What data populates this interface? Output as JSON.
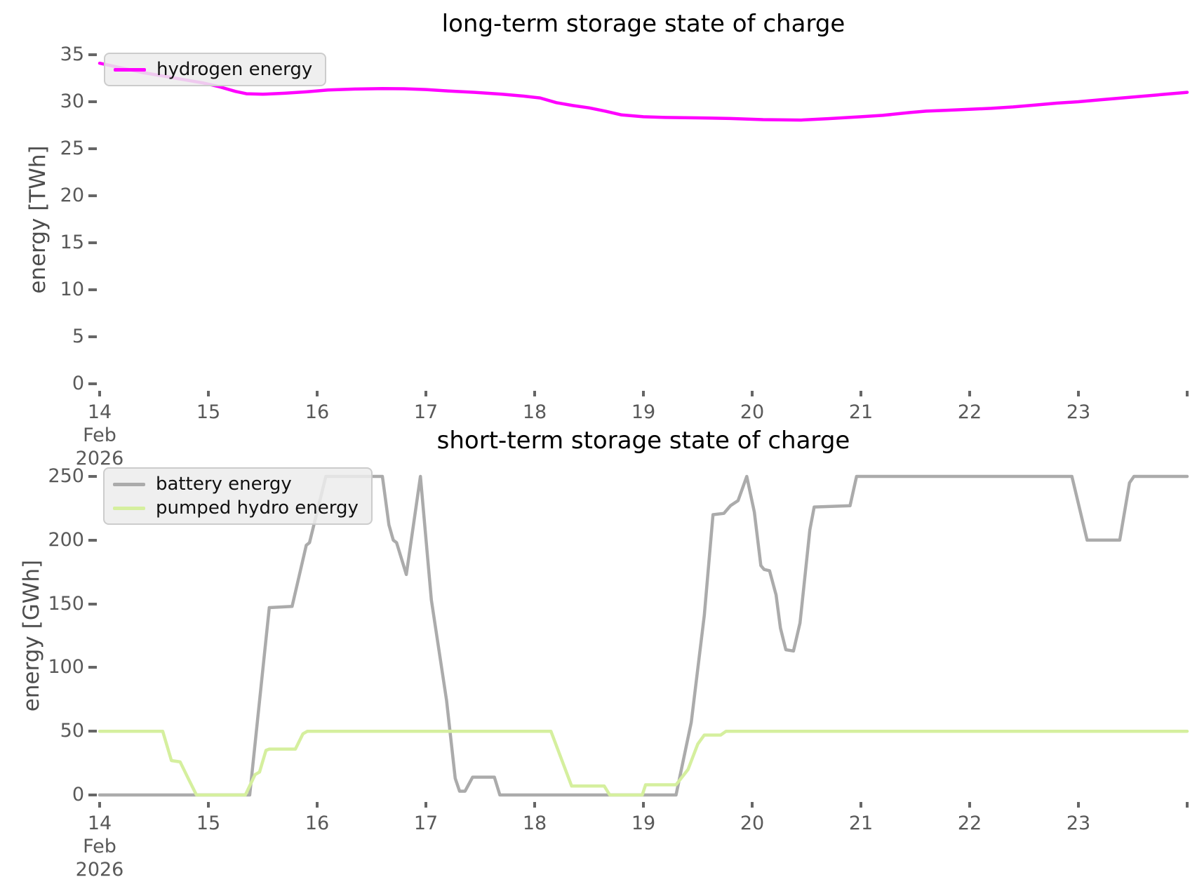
{
  "chart_data": [
    {
      "type": "line",
      "title": "long-term storage state of charge",
      "xlabel": "",
      "ylabel": "energy [TWh]",
      "xlim": [
        14,
        24
      ],
      "ylim": [
        0,
        35
      ],
      "grid": false,
      "legend_position": "upper left",
      "x_axis": {
        "unit": "day of month",
        "month": "Feb",
        "year": "2026"
      },
      "xticks": [
        14,
        15,
        16,
        17,
        18,
        19,
        20,
        21,
        22,
        23
      ],
      "yticks": [
        0,
        5,
        10,
        15,
        20,
        25,
        30,
        35
      ],
      "series": [
        {
          "name": "hydrogen energy",
          "color": "#ff00ff",
          "points": [
            [
              14.0,
              34.1
            ],
            [
              14.2,
              33.6
            ],
            [
              14.4,
              33.1
            ],
            [
              14.6,
              32.7
            ],
            [
              14.8,
              32.3
            ],
            [
              14.95,
              32.0
            ],
            [
              15.1,
              31.6
            ],
            [
              15.25,
              31.1
            ],
            [
              15.35,
              30.85
            ],
            [
              15.5,
              30.8
            ],
            [
              15.7,
              30.9
            ],
            [
              15.9,
              31.05
            ],
            [
              16.1,
              31.25
            ],
            [
              16.35,
              31.35
            ],
            [
              16.6,
              31.4
            ],
            [
              16.8,
              31.38
            ],
            [
              17.0,
              31.3
            ],
            [
              17.2,
              31.15
            ],
            [
              17.45,
              31.0
            ],
            [
              17.7,
              30.8
            ],
            [
              17.9,
              30.6
            ],
            [
              18.05,
              30.4
            ],
            [
              18.2,
              29.9
            ],
            [
              18.35,
              29.6
            ],
            [
              18.5,
              29.35
            ],
            [
              18.65,
              29.0
            ],
            [
              18.8,
              28.6
            ],
            [
              19.0,
              28.4
            ],
            [
              19.2,
              28.33
            ],
            [
              19.5,
              28.28
            ],
            [
              19.8,
              28.22
            ],
            [
              20.1,
              28.1
            ],
            [
              20.45,
              28.05
            ],
            [
              20.7,
              28.2
            ],
            [
              21.0,
              28.4
            ],
            [
              21.2,
              28.55
            ],
            [
              21.45,
              28.85
            ],
            [
              21.6,
              29.0
            ],
            [
              21.8,
              29.1
            ],
            [
              22.0,
              29.2
            ],
            [
              22.2,
              29.3
            ],
            [
              22.4,
              29.45
            ],
            [
              22.6,
              29.65
            ],
            [
              22.8,
              29.85
            ],
            [
              23.0,
              30.0
            ],
            [
              23.2,
              30.2
            ],
            [
              23.4,
              30.4
            ],
            [
              23.6,
              30.6
            ],
            [
              23.8,
              30.8
            ],
            [
              24.0,
              31.0
            ]
          ]
        }
      ]
    },
    {
      "type": "line",
      "title": "short-term storage state of charge",
      "xlabel": "",
      "ylabel": "energy [GWh]",
      "xlim": [
        14,
        24
      ],
      "ylim": [
        0,
        250
      ],
      "grid": false,
      "legend_position": "upper left",
      "x_axis": {
        "unit": "day of month",
        "month": "Feb",
        "year": "2026"
      },
      "xticks": [
        14,
        15,
        16,
        17,
        18,
        19,
        20,
        21,
        22,
        23
      ],
      "yticks": [
        0,
        50,
        100,
        150,
        200,
        250
      ],
      "series": [
        {
          "name": "battery energy",
          "color": "#ababab",
          "points": [
            [
              14.0,
              0
            ],
            [
              15.38,
              0
            ],
            [
              15.56,
              147
            ],
            [
              15.77,
              148
            ],
            [
              15.9,
              196
            ],
            [
              15.93,
              198
            ],
            [
              16.08,
              250
            ],
            [
              16.6,
              250
            ],
            [
              16.66,
              212
            ],
            [
              16.7,
              200
            ],
            [
              16.73,
              198
            ],
            [
              16.82,
              173
            ],
            [
              16.95,
              250
            ],
            [
              17.05,
              153
            ],
            [
              17.19,
              74
            ],
            [
              17.27,
              13
            ],
            [
              17.31,
              3
            ],
            [
              17.36,
              3
            ],
            [
              17.43,
              14
            ],
            [
              17.63,
              14
            ],
            [
              17.68,
              0
            ],
            [
              19.3,
              0
            ],
            [
              19.44,
              57
            ],
            [
              19.56,
              141
            ],
            [
              19.64,
              220
            ],
            [
              19.74,
              221
            ],
            [
              19.8,
              227
            ],
            [
              19.87,
              231
            ],
            [
              19.95,
              250
            ],
            [
              20.02,
              222
            ],
            [
              20.08,
              180
            ],
            [
              20.11,
              177
            ],
            [
              20.16,
              176
            ],
            [
              20.22,
              157
            ],
            [
              20.26,
              131
            ],
            [
              20.31,
              114
            ],
            [
              20.38,
              113
            ],
            [
              20.44,
              135
            ],
            [
              20.49,
              175
            ],
            [
              20.53,
              208
            ],
            [
              20.57,
              226
            ],
            [
              20.9,
              227
            ],
            [
              20.96,
              250
            ],
            [
              22.94,
              250
            ],
            [
              23.08,
              200
            ],
            [
              23.38,
              200
            ],
            [
              23.47,
              245
            ],
            [
              23.51,
              250
            ],
            [
              24.0,
              250
            ]
          ]
        },
        {
          "name": "pumped hydro energy",
          "color": "#d5ef9e",
          "points": [
            [
              14.0,
              50
            ],
            [
              14.58,
              50
            ],
            [
              14.66,
              27
            ],
            [
              14.74,
              26
            ],
            [
              14.82,
              12
            ],
            [
              14.89,
              0
            ],
            [
              15.34,
              0
            ],
            [
              15.43,
              16
            ],
            [
              15.47,
              18
            ],
            [
              15.53,
              35
            ],
            [
              15.56,
              36
            ],
            [
              15.8,
              36
            ],
            [
              15.87,
              48
            ],
            [
              15.91,
              50
            ],
            [
              18.15,
              50
            ],
            [
              18.34,
              7
            ],
            [
              18.64,
              7
            ],
            [
              18.69,
              0
            ],
            [
              18.99,
              0
            ],
            [
              19.02,
              8
            ],
            [
              19.3,
              8
            ],
            [
              19.41,
              20
            ],
            [
              19.5,
              40
            ],
            [
              19.56,
              47
            ],
            [
              19.71,
              47
            ],
            [
              19.76,
              50
            ],
            [
              24.0,
              50
            ]
          ]
        }
      ]
    }
  ]
}
